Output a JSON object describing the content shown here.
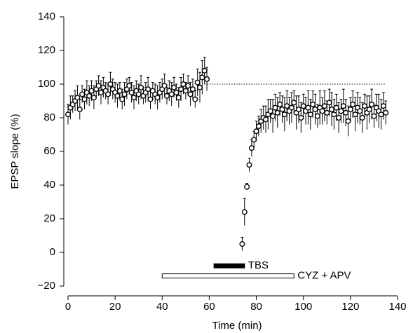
{
  "chart_data": {
    "type": "scatter",
    "xlabel": "Time (min)",
    "ylabel": "EPSP slope (%)",
    "xlim": [
      0,
      140
    ],
    "xticks": [
      0,
      20,
      40,
      60,
      80,
      100,
      120,
      140
    ],
    "ylim": [
      -20,
      140
    ],
    "yticks": [
      {
        "value": -20,
        "label": "−20"
      },
      0,
      20,
      40,
      60,
      80,
      100,
      120,
      140
    ],
    "color": "#000000",
    "x": [
      0,
      1,
      2,
      3,
      4,
      5,
      6,
      7,
      8,
      9,
      10,
      11,
      12,
      13,
      14,
      15,
      16,
      17,
      18,
      19,
      20,
      21,
      22,
      23,
      24,
      25,
      26,
      27,
      28,
      29,
      30,
      31,
      32,
      33,
      34,
      35,
      36,
      37,
      38,
      39,
      40,
      41,
      42,
      43,
      44,
      45,
      46,
      47,
      48,
      49,
      50,
      51,
      52,
      53,
      54,
      55,
      56,
      57,
      58,
      59,
      74,
      75,
      76,
      77,
      78,
      79,
      80,
      81,
      82,
      83,
      84,
      85,
      86,
      87,
      88,
      89,
      90,
      91,
      92,
      93,
      94,
      95,
      96,
      97,
      98,
      99,
      100,
      101,
      102,
      103,
      104,
      105,
      106,
      107,
      108,
      109,
      110,
      111,
      112,
      113,
      114,
      115,
      116,
      117,
      118,
      119,
      120,
      121,
      122,
      123,
      124,
      125,
      126,
      127,
      128,
      129,
      130,
      131,
      132,
      133,
      134,
      135
    ],
    "values": [
      82,
      86,
      88,
      90,
      92,
      85,
      94,
      91,
      95,
      93,
      96,
      92,
      97,
      99,
      95,
      98,
      96,
      94,
      100,
      97,
      95,
      93,
      96,
      91,
      94,
      97,
      99,
      95,
      92,
      96,
      94,
      98,
      93,
      95,
      97,
      91,
      96,
      94,
      92,
      95,
      97,
      99,
      93,
      96,
      94,
      98,
      95,
      92,
      97,
      100,
      96,
      99,
      94,
      97,
      91,
      101,
      98,
      104,
      108,
      103,
      5,
      24,
      39,
      52,
      62,
      67,
      72,
      75,
      78,
      80,
      79,
      82,
      84,
      81,
      86,
      83,
      88,
      85,
      82,
      87,
      84,
      86,
      89,
      83,
      85,
      80,
      87,
      84,
      86,
      82,
      88,
      85,
      81,
      86,
      84,
      87,
      83,
      89,
      85,
      82,
      86,
      80,
      84,
      87,
      83,
      78,
      85,
      88,
      82,
      86,
      84,
      80,
      87,
      83,
      85,
      88,
      81,
      86,
      84,
      82,
      87,
      83
    ],
    "errors": [
      6,
      7,
      5,
      6,
      7,
      6,
      5,
      6,
      7,
      6,
      6,
      7,
      5,
      6,
      7,
      6,
      5,
      6,
      7,
      6,
      6,
      7,
      5,
      6,
      7,
      6,
      5,
      6,
      7,
      6,
      6,
      7,
      5,
      6,
      7,
      6,
      5,
      6,
      7,
      6,
      6,
      7,
      5,
      6,
      7,
      6,
      5,
      6,
      7,
      6,
      5,
      6,
      7,
      6,
      5,
      8,
      9,
      10,
      8,
      7,
      4,
      8,
      2,
      4,
      5,
      5,
      6,
      6,
      7,
      7,
      8,
      9,
      7,
      10,
      8,
      9,
      7,
      8,
      10,
      9,
      8,
      9,
      7,
      10,
      8,
      9,
      7,
      8,
      10,
      9,
      8,
      9,
      7,
      10,
      8,
      9,
      7,
      8,
      10,
      9,
      8,
      9,
      7,
      10,
      8,
      9,
      7,
      8,
      10,
      9,
      8,
      9,
      7,
      10,
      8,
      9,
      7,
      8,
      10,
      9,
      8,
      7
    ],
    "hline": {
      "y": 100,
      "x": [
        58,
        135
      ]
    },
    "annotations": [
      {
        "text": "TBS",
        "x": [
          62,
          75
        ],
        "y": -8,
        "fill": "#000000"
      },
      {
        "text": "CYZ + APV",
        "x": [
          40,
          96
        ],
        "y": -14,
        "fill": "#ffffff"
      }
    ]
  }
}
